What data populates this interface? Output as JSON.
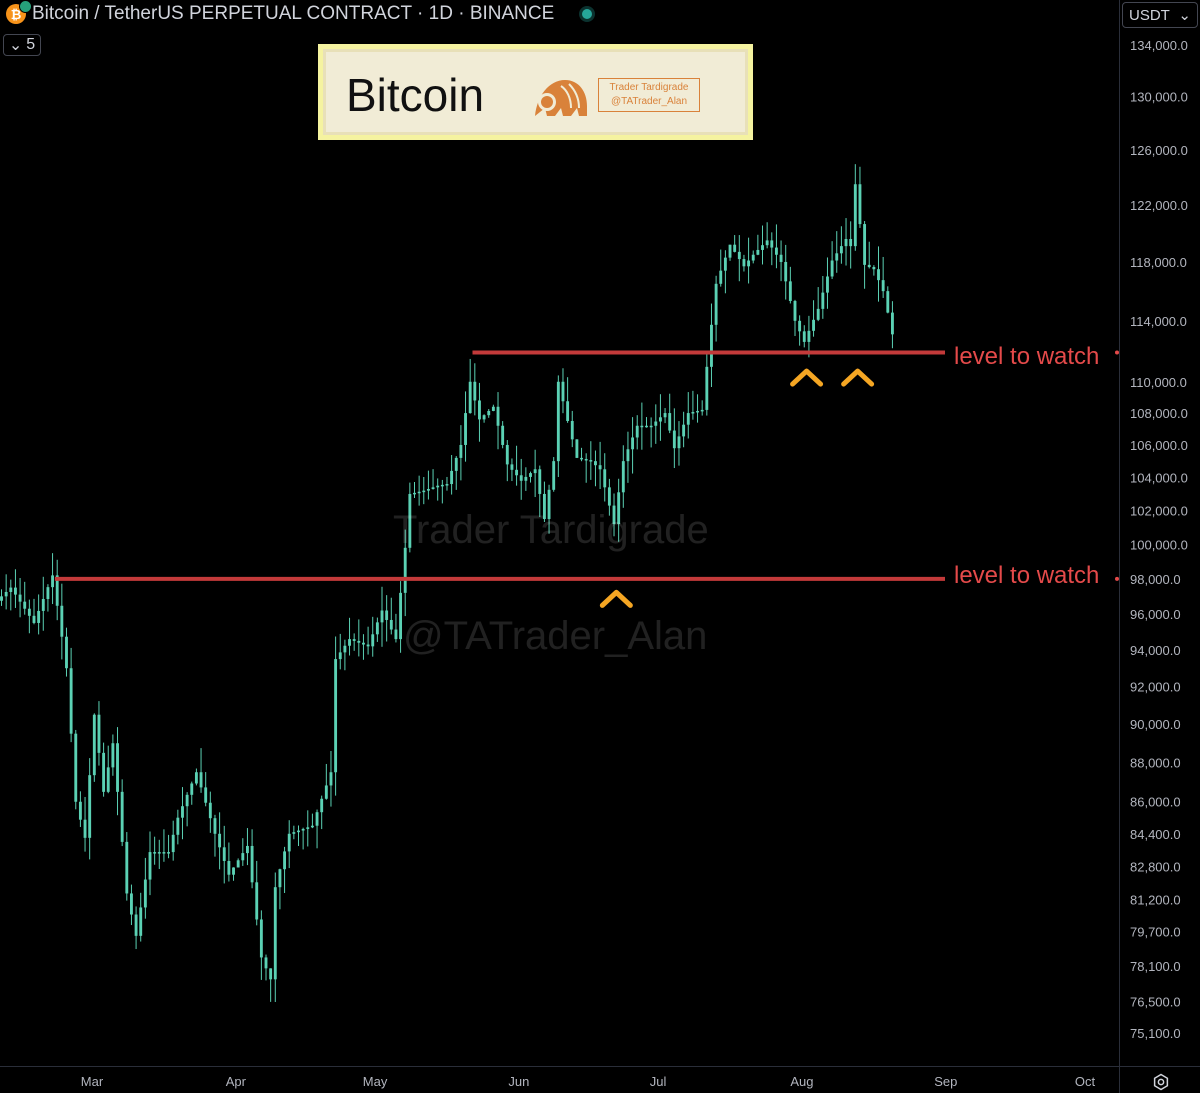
{
  "header": {
    "symbol_title": "Bitcoin / TetherUS PERPETUAL CONTRACT · 1D · BINANCE",
    "coin_icon": "bitcoin-icon",
    "indicator_count": "5",
    "currency": "USDT"
  },
  "banner": {
    "title": "Bitcoin",
    "logo_icon": "tardigrade-logo-icon",
    "badge_line1": "Trader Tardigrade",
    "badge_line2": "@TATrader_Alan"
  },
  "watermark": {
    "line1": "Trader Tardigrade",
    "line2": "@TATrader_Alan"
  },
  "colors": {
    "candle": "#5bd1b4",
    "level_line": "#c33a3a",
    "level_text": "#e44a4a",
    "arrow": "#f5a623",
    "banner_border": "#f5f3a0"
  },
  "chart_data": {
    "type": "candlestick",
    "title": "",
    "xlabel": "",
    "ylabel": "",
    "y_scale": "log",
    "ylim": [
      74500,
      134500
    ],
    "x_ticks": [
      "Mar",
      "Apr",
      "May",
      "Jun",
      "Jul",
      "Aug",
      "Sep",
      "Oct"
    ],
    "y_ticks": [
      134000,
      130000,
      126000,
      122000,
      118000,
      114000,
      110000,
      108000,
      106000,
      104000,
      102000,
      100000,
      98000,
      96000,
      94000,
      92000,
      90000,
      88000,
      86000,
      84400,
      82800,
      81200,
      79700,
      78100,
      76500,
      75100
    ],
    "y_tick_labels": [
      "134,000.0",
      "130,000.0",
      "126,000.0",
      "122,000.0",
      "118,000.0",
      "114,000.0",
      "110,000.0",
      "108,000.0",
      "106,000.0",
      "104,000.0",
      "102,000.0",
      "100,000.0",
      "98,000.0",
      "96,000.0",
      "94,000.0",
      "92,000.0",
      "90,000.0",
      "88,000.0",
      "86,000.0",
      "84,400.0",
      "82,800.0",
      "81,200.0",
      "79,700.0",
      "78,100.0",
      "76,500.0",
      "75,100.0"
    ],
    "price_path": [
      [
        "Feb 8",
        96500
      ],
      [
        "Feb 12",
        97500
      ],
      [
        "Feb 17",
        95500
      ],
      [
        "Feb 21",
        98200
      ],
      [
        "Feb 24",
        93000
      ],
      [
        "Feb 26",
        86000
      ],
      [
        "Feb 28",
        84200
      ],
      [
        "Mar 2",
        90500
      ],
      [
        "Mar 4",
        86500
      ],
      [
        "Mar 6",
        89000
      ],
      [
        "Mar 9",
        81500
      ],
      [
        "Mar 11",
        79500
      ],
      [
        "Mar 14",
        83500
      ],
      [
        "Mar 18",
        83500
      ],
      [
        "Mar 20",
        85200
      ],
      [
        "Mar 24",
        87500
      ],
      [
        "Mar 28",
        84400
      ],
      [
        "Mar 31",
        82400
      ],
      [
        "Apr 4",
        83800
      ],
      [
        "Apr 7",
        78500
      ],
      [
        "Apr 9",
        77500
      ],
      [
        "Apr 10",
        81800
      ],
      [
        "Apr 13",
        84400
      ],
      [
        "Apr 18",
        84800
      ],
      [
        "Apr 22",
        87500
      ],
      [
        "Apr 23",
        93500
      ],
      [
        "Apr 26",
        94600
      ],
      [
        "Apr 30",
        94200
      ],
      [
        "May 3",
        96200
      ],
      [
        "May 6",
        94600
      ],
      [
        "May 8",
        99800
      ],
      [
        "May 9",
        103000
      ],
      [
        "May 12",
        103200
      ],
      [
        "May 15",
        103500
      ],
      [
        "May 17",
        103600
      ],
      [
        "May 20",
        106000
      ],
      [
        "May 22",
        110000
      ],
      [
        "May 24",
        107600
      ],
      [
        "May 27",
        108400
      ],
      [
        "May 30",
        104800
      ],
      [
        "Jun 2",
        103800
      ],
      [
        "Jun 5",
        104500
      ],
      [
        "Jun 7",
        101500
      ],
      [
        "Jun 9",
        105000
      ],
      [
        "Jun 10",
        110000
      ],
      [
        "Jun 12",
        107500
      ],
      [
        "Jun 14",
        105200
      ],
      [
        "Jun 17",
        105000
      ],
      [
        "Jun 19",
        104500
      ],
      [
        "Jun 22",
        101200
      ],
      [
        "Jun 24",
        105000
      ],
      [
        "Jun 27",
        107200
      ],
      [
        "Jun 30",
        107200
      ],
      [
        "Jul 3",
        108000
      ],
      [
        "Jul 5",
        105800
      ],
      [
        "Jul 8",
        108000
      ],
      [
        "Jul 11",
        108200
      ],
      [
        "Jul 14",
        116500
      ],
      [
        "Jul 17",
        119200
      ],
      [
        "Jul 20",
        117700
      ],
      [
        "Jul 22",
        118500
      ],
      [
        "Jul 25",
        119500
      ],
      [
        "Jul 28",
        118000
      ],
      [
        "Jul 31",
        114000
      ],
      [
        "Aug 2",
        112600
      ],
      [
        "Aug 5",
        114800
      ],
      [
        "Aug 8",
        118100
      ],
      [
        "Aug 11",
        119600
      ],
      [
        "Aug 12",
        119100
      ],
      [
        "Aug 13",
        123500
      ],
      [
        "Aug 15",
        117800
      ],
      [
        "Aug 17",
        117500
      ],
      [
        "Aug 19",
        116000
      ],
      [
        "Aug 21",
        113100
      ]
    ],
    "levels": [
      {
        "label": "level to watch",
        "price": 111900,
        "from": "May 22",
        "to": "Aug 31"
      },
      {
        "label": "level to watch",
        "price": 98000,
        "from": "Feb 21",
        "to": "Aug 31"
      }
    ],
    "markers": [
      {
        "type": "support-touch",
        "date": "Aug 2",
        "price": 111800
      },
      {
        "type": "support-touch",
        "date": "Aug 13",
        "price": 111800
      },
      {
        "type": "support-touch",
        "date": "Jun 22",
        "price": 98200
      }
    ]
  }
}
